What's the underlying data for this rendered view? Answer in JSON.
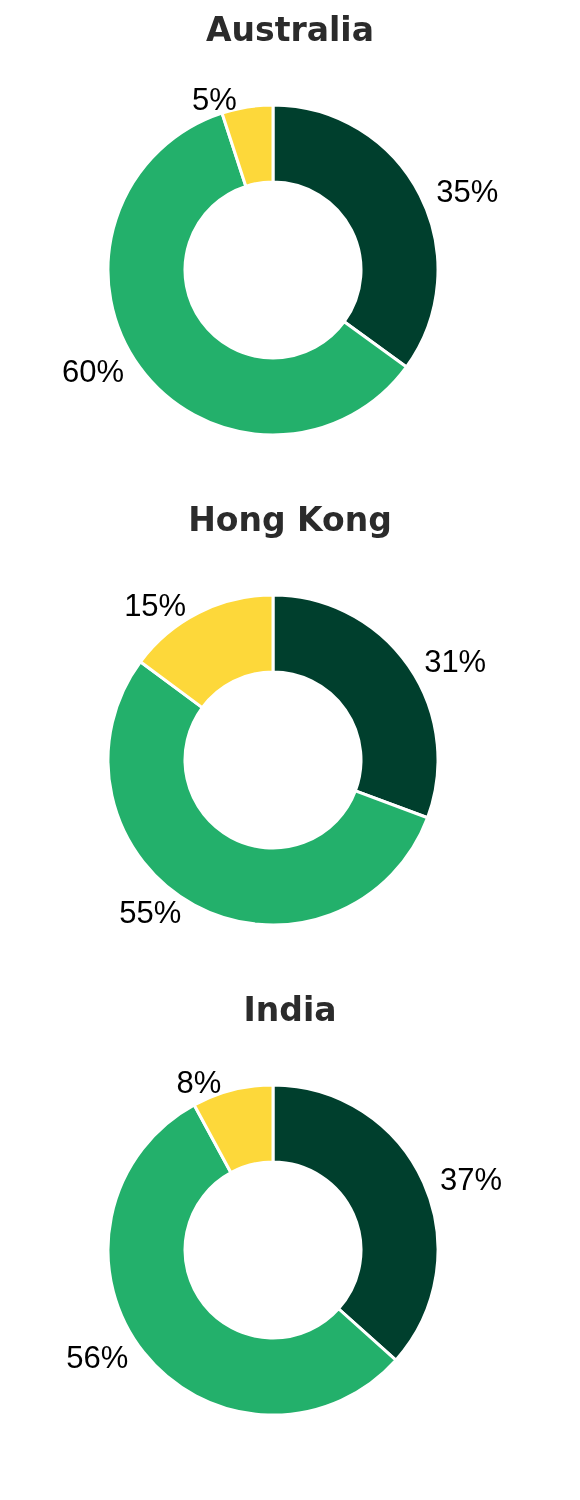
{
  "chart_data": [
    {
      "type": "donut",
      "title": "Australia",
      "categories": [
        null,
        null,
        null
      ],
      "values": [
        35,
        60,
        5
      ],
      "value_labels": [
        "35%",
        "60%",
        "5%"
      ],
      "colors": [
        "#003f2d",
        "#23b06b",
        "#fdd83a"
      ]
    },
    {
      "type": "donut",
      "title": "Hong Kong",
      "categories": [
        null,
        null,
        null
      ],
      "values": [
        31,
        55,
        15
      ],
      "value_labels": [
        "31%",
        "55%",
        "15%"
      ],
      "colors": [
        "#003f2d",
        "#23b06b",
        "#fdd83a"
      ]
    },
    {
      "type": "donut",
      "title": "India",
      "categories": [
        null,
        null,
        null
      ],
      "values": [
        37,
        56,
        8
      ],
      "value_labels": [
        "37%",
        "56%",
        "8%"
      ],
      "colors": [
        "#003f2d",
        "#23b06b",
        "#fdd83a"
      ]
    }
  ]
}
